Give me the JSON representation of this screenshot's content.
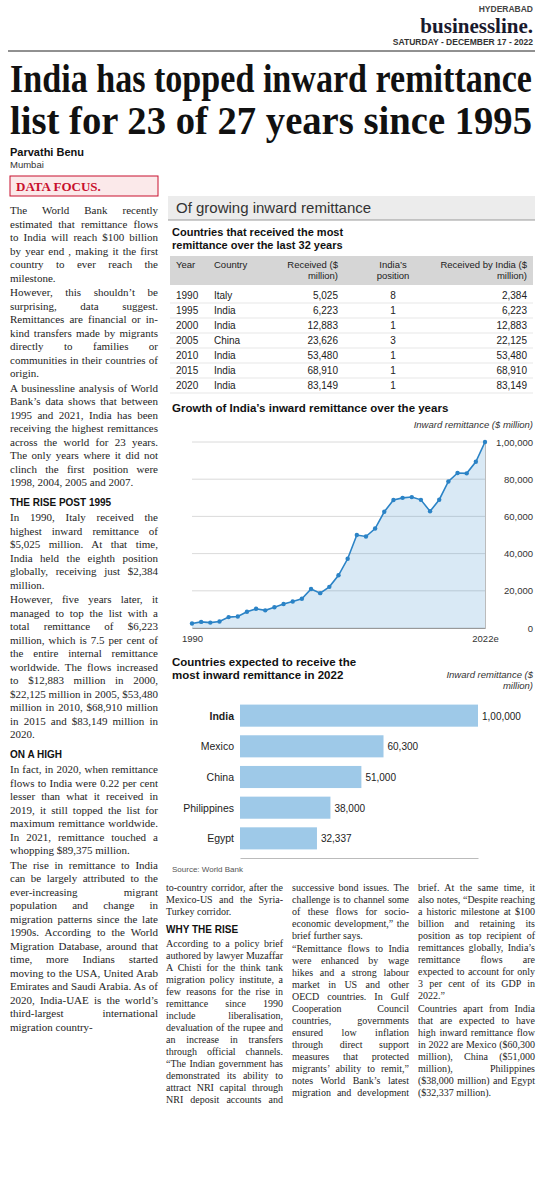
{
  "masthead": {
    "edition": "HYDERABAD",
    "name": "businessline.",
    "date": "SATURDAY - DECEMBER 17 - 2022"
  },
  "headline": [
    "India has topped inward remittance",
    "list for 23 of 27 years since 1995"
  ],
  "byline": {
    "author": "Parvathi Benu",
    "place": "Mumbai"
  },
  "section_tag": "DATA FOCUS.",
  "article": {
    "left": [
      {
        "text": "The World Bank recently estimated that remittance flows to India will reach $100 billion by year end , making it the first country to ever reach the milestone."
      },
      {
        "text": "However, this shouldn’t be surprising, data suggest. Remittances are financial or in-kind transfers made by migrants directly to families or communities in their countries of origin."
      },
      {
        "text": "A businessline analysis of World Bank’s data shows that between 1995 and 2021, India has been receiving the highest remittances across the world for 23 years. The only years where it did not clinch the first position were 1998, 2004, 2005 and 2007."
      },
      {
        "heading": "THE RISE POST 1995"
      },
      {
        "text": "In 1990, Italy received the highest inward remittance of $5,025 million. At that time, India held the eighth position globally, receiving just $2,384 million."
      },
      {
        "text": "However, five years later, it managed to top the list with a total remittance of $6,223 million, which is 7.5 per cent of the entire internal remittance worldwide. The flows increased to $12,883 million in 2000, $22,125 million in 2005, $53,480 million in 2010, $68,910 million in 2015 and $83,149 million in 2020."
      },
      {
        "heading": "ON A HIGH"
      },
      {
        "text": "In fact, in 2020, when remittance flows to India were 0.22 per cent lesser than what it received in 2019, it still topped the list for maximum remittance worldwide. In 2021, remittance touched a whopping $89,375 million."
      },
      {
        "text": "The rise in remittance to India can be largely attributed to the ever-increasing migrant population and change in migration patterns since the late 1990s. According to the World Migration Database, around that time, more Indians started moving to the USA, United Arab Emirates and Saudi Arabia. As of 2020, India-UAE is the world’s third-largest international migration country-"
      }
    ],
    "bottom": [
      {
        "text": "to-country corridor, after the Mexico-US and the Syria-Turkey corridor."
      },
      {
        "heading": "WHY THE RISE"
      },
      {
        "text": "According to a policy brief authored by lawyer Muzaffar A Chisti for the think tank migration policy institute, a few reasons for the rise in remittance since 1990 include liberalisation, devaluation of the rupee and an increase in transfers through official channels. “The Indian government has demonstrated its ability to attract NRI capital through NRI deposit accounts and successive bond issues. The challenge is to channel some of these flows for socio-economic development,” the brief further says."
      },
      {
        "text": "“Remittance flows to India were enhanced by wage hikes and a strong labour market in US and other OECD countries. In Gulf Cooperation Council countries, governments ensured low inflation through direct support measures that protected migrants’ ability to remit,” notes World Bank’s latest migration and development brief. At the same time, it also notes, “Despite reaching a historic milestone at $100 billion and retaining its position as top recipient of remittances globally, India’s remittance flows are expected to account for only 3 per cent of its GDP in 2022.”"
      },
      {
        "text": "Countries apart from India that are expected to have high inward remittance flow in 2022 are Mexico ($60,300 million), China ($51,000 million), Philippines ($38,000 million) and Egypt ($32,337 million)."
      }
    ]
  },
  "graphic": {
    "title": "Of growing inward remittance",
    "table": {
      "title": "Countries that received the most remittance over the last 32 years",
      "columns": [
        "Year",
        "Country",
        "Received ($ million)",
        "India’s position",
        "Received by India ($ million)"
      ],
      "rows": [
        [
          "1990",
          "Italy",
          "5,025",
          "8",
          "2,384"
        ],
        [
          "1995",
          "India",
          "6,223",
          "1",
          "6,223"
        ],
        [
          "2000",
          "India",
          "12,883",
          "1",
          "12,883"
        ],
        [
          "2005",
          "China",
          "23,626",
          "3",
          "22,125"
        ],
        [
          "2010",
          "India",
          "53,480",
          "1",
          "53,480"
        ],
        [
          "2015",
          "India",
          "68,910",
          "1",
          "68,910"
        ],
        [
          "2020",
          "India",
          "83,149",
          "1",
          "83,149"
        ]
      ]
    },
    "source": "Source: World Bank"
  },
  "chart_data": [
    {
      "type": "line",
      "title": "Growth of India’s inward remittance over the years",
      "ylabel": "Inward remittance ($ million)",
      "categories": [
        "1990",
        null,
        null,
        null,
        null,
        null,
        null,
        null,
        null,
        null,
        null,
        null,
        null,
        null,
        null,
        null,
        null,
        null,
        null,
        null,
        null,
        null,
        null,
        null,
        null,
        null,
        null,
        null,
        null,
        null,
        null,
        null,
        "2022e"
      ],
      "values": [
        2384,
        3289,
        2897,
        3523,
        5857,
        6223,
        8766,
        10331,
        9479,
        11124,
        12883,
        14273,
        15736,
        20999,
        18750,
        22125,
        28334,
        37217,
        49977,
        49204,
        53480,
        62499,
        68821,
        69970,
        70389,
        68910,
        62744,
        68967,
        78790,
        83332,
        83149,
        89375,
        100000
      ],
      "color": "#2b83c6",
      "marker": "circle",
      "grid": true,
      "ylim": [
        0,
        100000
      ],
      "yticks": [
        0,
        {
          "value": 20000,
          "label": "20,000"
        },
        {
          "value": 40000,
          "label": "40,000"
        },
        {
          "value": 60000,
          "label": "60,000"
        },
        {
          "value": 80000,
          "label": "80,000"
        },
        {
          "value": 100000,
          "label": "1,00,000"
        }
      ]
    },
    {
      "type": "bar",
      "orientation": "horizontal",
      "title": "Countries expected to receive the most inward remittance in 2022",
      "xlabel": "Inward remittance ($ million)",
      "categories": [
        "India",
        "Mexico",
        "China",
        "Philippines",
        "Egypt"
      ],
      "values": [
        100000,
        60300,
        51000,
        38000,
        32337
      ],
      "value_labels": [
        "1,00,000",
        "60,300",
        "51,000",
        "38,000",
        "32,337"
      ],
      "data_labels": true,
      "color": "#9ec9e8",
      "grid": false,
      "tick_labels": "y",
      "xlim": [
        0,
        100000
      ]
    }
  ]
}
